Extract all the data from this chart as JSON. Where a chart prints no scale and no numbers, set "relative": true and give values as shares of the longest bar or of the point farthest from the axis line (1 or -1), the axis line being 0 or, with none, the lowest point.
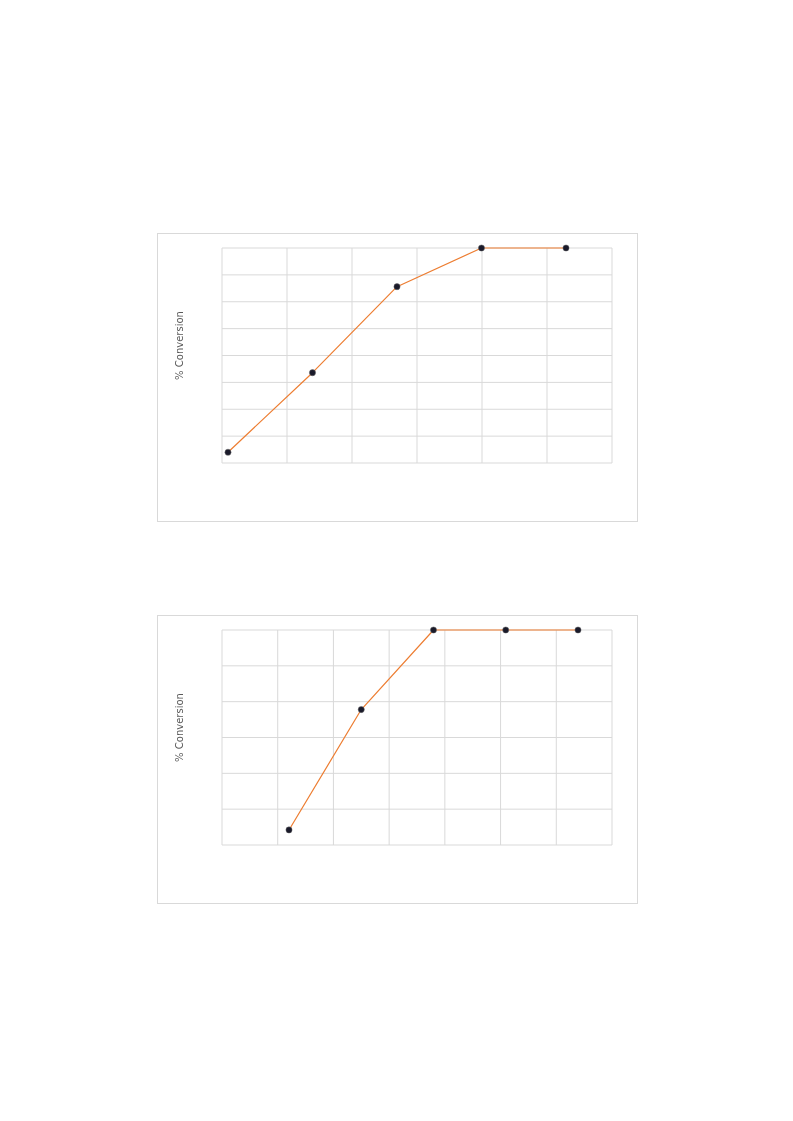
{
  "chart_data": [
    {
      "type": "line",
      "ylabel": "% Conversion",
      "relative": true,
      "categories": [
        null,
        null,
        null,
        null,
        null
      ],
      "series": [
        {
          "color": "#ed7d31",
          "values": [
            0.05,
            0.42,
            0.82,
            1,
            1
          ]
        }
      ],
      "marker": "circle",
      "grid": true
    },
    {
      "type": "line",
      "ylabel": "% Conversion",
      "relative": true,
      "categories": [
        null,
        null,
        null,
        null,
        null
      ],
      "series": [
        {
          "color": "#ed7d31",
          "values": [
            0.07,
            0.63,
            1,
            1,
            1
          ]
        }
      ],
      "marker": "circle",
      "grid": true
    }
  ]
}
